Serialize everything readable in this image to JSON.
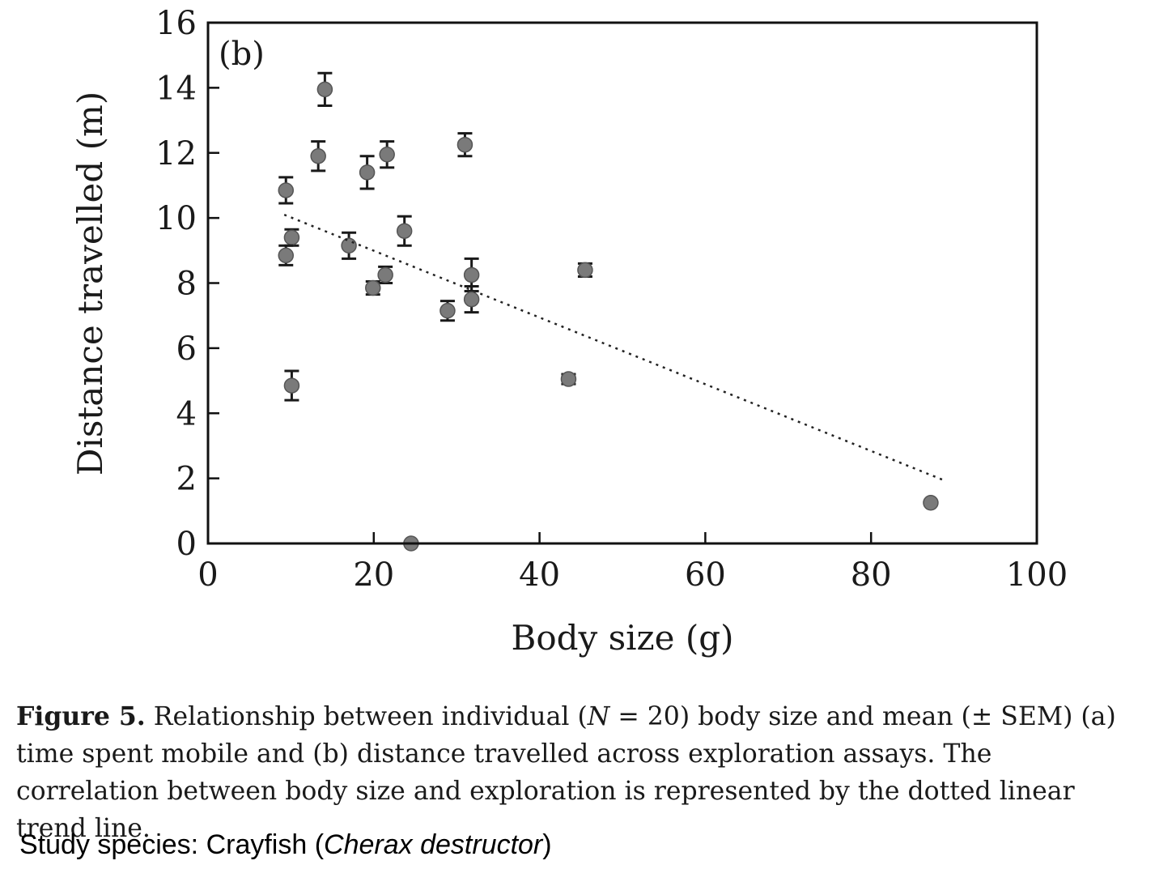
{
  "chart_data": {
    "type": "scatter",
    "panel_label": "(b)",
    "xlabel": "Body size (g)",
    "ylabel": "Distance travelled (m)",
    "xlim": [
      0,
      100
    ],
    "ylim": [
      0,
      16
    ],
    "xticks": [
      0,
      20,
      40,
      60,
      80,
      100
    ],
    "yticks": [
      0,
      2,
      4,
      6,
      8,
      10,
      12,
      14,
      16
    ],
    "grid": false,
    "error_bars": "SEM",
    "points": [
      {
        "x": 14.1,
        "y": 13.95,
        "sem": 0.5
      },
      {
        "x": 13.3,
        "y": 11.9,
        "sem": 0.45
      },
      {
        "x": 19.2,
        "y": 11.4,
        "sem": 0.5
      },
      {
        "x": 21.6,
        "y": 11.95,
        "sem": 0.4
      },
      {
        "x": 31.0,
        "y": 12.25,
        "sem": 0.35
      },
      {
        "x": 9.4,
        "y": 10.85,
        "sem": 0.4
      },
      {
        "x": 10.1,
        "y": 9.4,
        "sem": 0.25
      },
      {
        "x": 9.4,
        "y": 8.85,
        "sem": 0.3
      },
      {
        "x": 17.0,
        "y": 9.15,
        "sem": 0.4
      },
      {
        "x": 23.7,
        "y": 9.6,
        "sem": 0.45
      },
      {
        "x": 21.4,
        "y": 8.25,
        "sem": 0.25
      },
      {
        "x": 19.9,
        "y": 7.85,
        "sem": 0.2
      },
      {
        "x": 31.8,
        "y": 8.25,
        "sem": 0.5
      },
      {
        "x": 31.8,
        "y": 7.5,
        "sem": 0.4
      },
      {
        "x": 28.9,
        "y": 7.15,
        "sem": 0.3
      },
      {
        "x": 45.5,
        "y": 8.4,
        "sem": 0.2
      },
      {
        "x": 10.1,
        "y": 4.85,
        "sem": 0.45
      },
      {
        "x": 43.5,
        "y": 5.05,
        "sem": 0.15
      },
      {
        "x": 87.2,
        "y": 1.25,
        "sem": 0
      },
      {
        "x": 24.5,
        "y": 0.0,
        "sem": 0
      }
    ],
    "trendline": {
      "style": "dotted",
      "x": [
        9.2,
        88.7
      ],
      "y": [
        10.1,
        1.95
      ]
    }
  },
  "caption": {
    "label": "Figure 5.",
    "part1": " Relationship between individual (",
    "n_symbol": "N",
    "part2": " = 20) body size and mean (± SEM) (a) time spent mobile and (b) distance travelled across exploration assays. The correlation between body size and exploration is represented by the dotted linear trend line."
  },
  "species": {
    "prefix": "Study species: Crayfish (",
    "latin": "Cherax destructor",
    "suffix": ")"
  },
  "colors": {
    "marker": "#7a7a7a",
    "marker_edge": "#555555",
    "axis": "#111111"
  }
}
